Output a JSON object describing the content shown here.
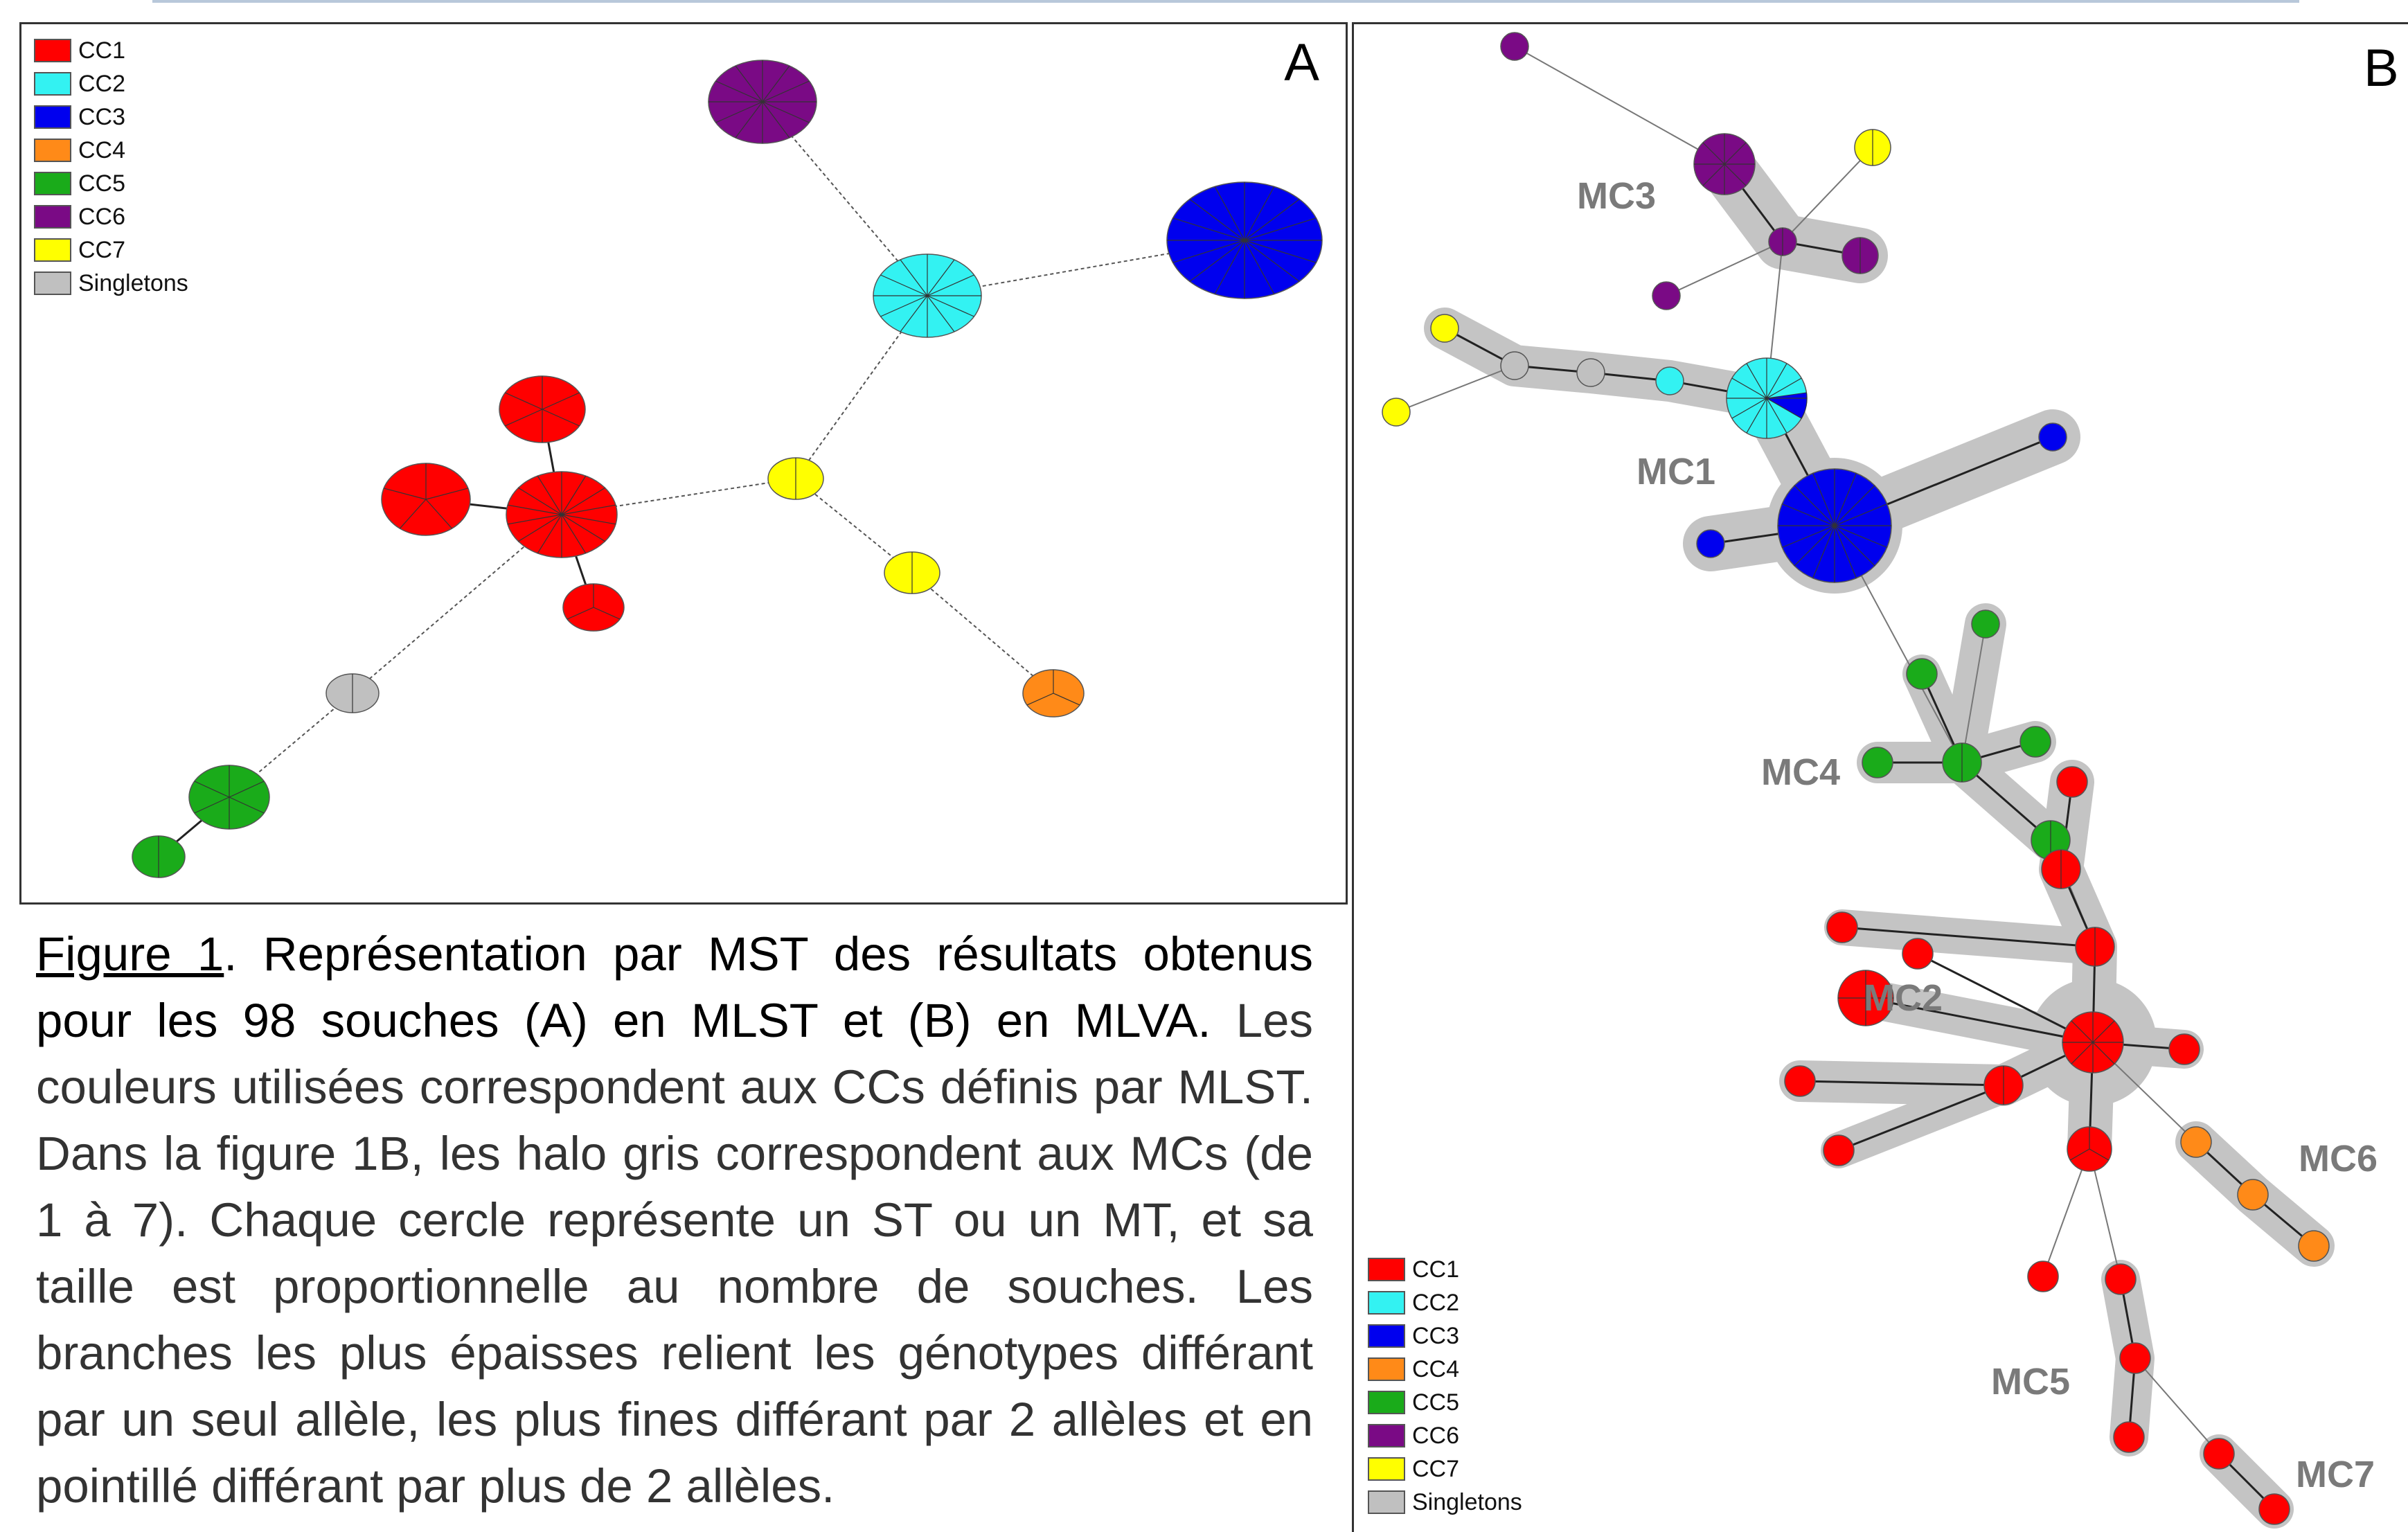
{
  "colors": {
    "CC1": "#ff0000",
    "CC2": "#33f2f2",
    "CC3": "#0000ee",
    "CC4": "#ff8a18",
    "CC5": "#1aab1a",
    "CC6": "#7a0a85",
    "CC7": "#ffff00",
    "Singletons": "#c0c0c0",
    "halo": "#c4c4c4"
  },
  "legend": [
    {
      "label": "CC1",
      "key": "CC1"
    },
    {
      "label": "CC2",
      "key": "CC2"
    },
    {
      "label": "CC3",
      "key": "CC3"
    },
    {
      "label": "CC4",
      "key": "CC4"
    },
    {
      "label": "CC5",
      "key": "CC5"
    },
    {
      "label": "CC6",
      "key": "CC6"
    },
    {
      "label": "CC7",
      "key": "CC7"
    },
    {
      "label": "Singletons",
      "key": "Singletons"
    }
  ],
  "panelA": {
    "letter": "A"
  },
  "panelB": {
    "letter": "B",
    "mc_labels": [
      "MC1",
      "MC2",
      "MC3",
      "MC4",
      "MC5",
      "MC6",
      "MC7"
    ]
  },
  "caption": {
    "figure_ref": "Figure 1",
    "lead": ". Représentation par MST des résultats obtenus pour les 98 souches (A) en MLST et (B) en MLVA.",
    "body": " Les couleurs utilisées correspondent aux CCs définis par MLST. Dans la figure 1B, les halo gris correspondent aux MCs (de 1 à 7). Chaque cercle représente un ST ou un MT, et sa taille est proportionnelle au nombre de souches. Les branches les plus épaisses relient les génotypes différant par un seul allèle, les plus fines différant par 2 allèles et en pointillé différant par plus de 2 allèles."
  }
}
